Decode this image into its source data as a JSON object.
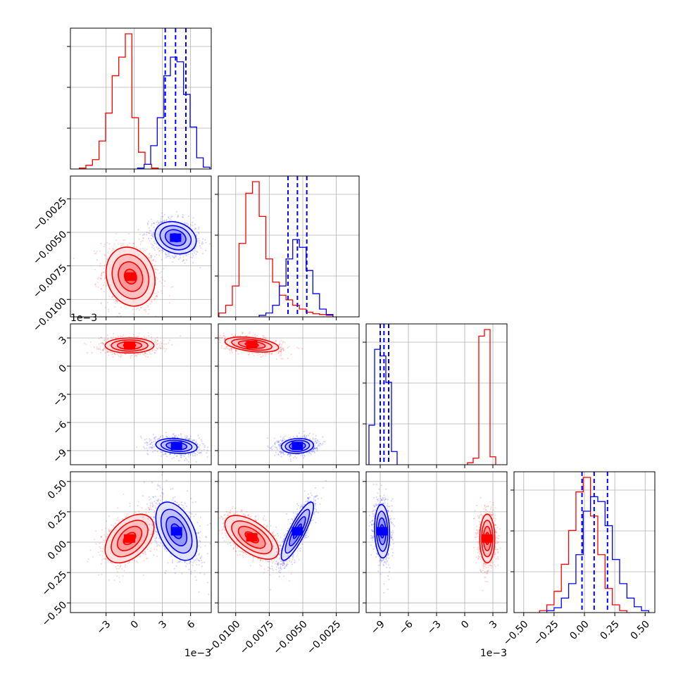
{
  "chart_data": {
    "type": "corner",
    "grid": true,
    "legend": "none",
    "series": [
      {
        "name": "",
        "color": "#ff0000",
        "quantiles_drawn": false
      },
      {
        "name": "",
        "color": "#0000ff",
        "quantiles_drawn": true
      }
    ],
    "parameters": [
      {
        "id": "p1",
        "range": [
          -0.0068,
          0.0082
        ],
        "ticks": [
          -0.003,
          0,
          0.003,
          0.006
        ],
        "tick_labels": [
          "−3",
          "0",
          "3",
          "6"
        ],
        "offset_label": "1e−3",
        "red": {
          "bin_centers": [
            -0.0055,
            -0.0048,
            -0.0041,
            -0.0034,
            -0.0027,
            -0.002,
            -0.0013,
            -0.0006,
            0.0001,
            0.0008,
            0.0015,
            0.0022
          ],
          "counts": [
            0.01,
            0.04,
            0.1,
            0.3,
            0.6,
            1.0,
            1.2,
            1.45,
            0.55,
            0.18,
            0.05,
            0.01
          ]
        },
        "blue": {
          "bin_centers": [
            0.0007,
            0.0014,
            0.0021,
            0.0028,
            0.0035,
            0.0042,
            0.0049,
            0.0056,
            0.0063,
            0.007,
            0.0077
          ],
          "counts": [
            0.01,
            0.05,
            0.25,
            0.55,
            1.0,
            1.2,
            1.15,
            0.8,
            0.45,
            0.12,
            0.02
          ]
        },
        "blue_quantiles": [
          0.0033,
          0.0044,
          0.0055
        ]
      },
      {
        "id": "p2",
        "range": [
          -0.0113,
          -0.0008
        ],
        "ticks": [
          -0.01,
          -0.0075,
          -0.005,
          -0.0025
        ],
        "tick_labels": [
          "−0.0100",
          "−0.0075",
          "−0.0050",
          "−0.0025"
        ],
        "offset_label": "",
        "red": {
          "bin_centers": [
            -0.011,
            -0.0105,
            -0.01,
            -0.0095,
            -0.009,
            -0.0085,
            -0.008,
            -0.0075,
            -0.007,
            -0.0065,
            -0.006,
            -0.0055,
            -0.005,
            -0.0045,
            -0.004,
            -0.0035,
            -0.003
          ],
          "counts": [
            0.05,
            0.15,
            0.4,
            0.95,
            1.6,
            1.75,
            1.3,
            0.75,
            0.45,
            0.28,
            0.22,
            0.15,
            0.1,
            0.06,
            0.04,
            0.03,
            0.02
          ]
        },
        "blue": {
          "bin_centers": [
            -0.008,
            -0.0075,
            -0.007,
            -0.0065,
            -0.006,
            -0.0055,
            -0.005,
            -0.0045,
            -0.004,
            -0.0035,
            -0.003
          ],
          "counts": [
            0.02,
            0.05,
            0.15,
            0.4,
            0.75,
            1.0,
            0.9,
            0.6,
            0.3,
            0.1,
            0.03
          ]
        },
        "blue_quantiles": [
          -0.0061,
          -0.0054,
          -0.0047
        ]
      },
      {
        "id": "p3",
        "range": [
          -0.0105,
          0.0045
        ],
        "ticks": [
          -0.009,
          -0.006,
          -0.003,
          0,
          0.003
        ],
        "tick_labels": [
          "−9",
          "−6",
          "−3",
          "0",
          "3"
        ],
        "offset_label": "1e−3",
        "red": {
          "bin_centers": [
            0.0006,
            0.0012,
            0.0018,
            0.0024,
            0.003
          ],
          "counts": [
            0.03,
            0.1,
            1.95,
            2.05,
            0.12
          ]
        },
        "blue": {
          "bin_centers": [
            -0.0099,
            -0.0093,
            -0.0087,
            -0.0081,
            -0.0075
          ],
          "counts": [
            0.6,
            1.75,
            1.65,
            1.25,
            0.2
          ]
        },
        "blue_quantiles": [
          -0.009,
          -0.0086,
          -0.0081
        ]
      },
      {
        "id": "p4",
        "range": [
          -0.58,
          0.58
        ],
        "ticks": [
          -0.5,
          -0.25,
          0,
          0.25,
          0.5
        ],
        "tick_labels": [
          "−0.50",
          "−0.25",
          "0.00",
          "0.25",
          "0.50"
        ],
        "offset_label": "",
        "red": {
          "bin_centers": [
            -0.34,
            -0.28,
            -0.22,
            -0.16,
            -0.1,
            -0.04,
            0.02,
            0.08,
            0.14,
            0.2,
            0.26,
            0.32
          ],
          "counts": [
            0.02,
            0.08,
            0.22,
            0.5,
            0.85,
            1.25,
            1.4,
            1.0,
            0.6,
            0.25,
            0.08,
            0.02
          ]
        },
        "blue": {
          "bin_centers": [
            -0.28,
            -0.22,
            -0.16,
            -0.1,
            -0.04,
            0.02,
            0.08,
            0.14,
            0.2,
            0.26,
            0.32,
            0.38,
            0.44,
            0.5
          ],
          "counts": [
            0.02,
            0.05,
            0.15,
            0.3,
            0.6,
            1.05,
            1.2,
            1.15,
            0.9,
            0.55,
            0.3,
            0.15,
            0.06,
            0.02
          ]
        },
        "blue_quantiles": [
          -0.02,
          0.08,
          0.19
        ]
      }
    ],
    "pairs": [
      {
        "x": 0,
        "y": 1,
        "red": {
          "mean": [
            -0.0004,
            -0.0083
          ],
          "std": [
            0.0013,
            0.0011
          ],
          "corr": -0.15
        },
        "blue": {
          "mean": [
            0.0044,
            -0.0054
          ],
          "std": [
            0.0011,
            0.0006
          ],
          "corr": -0.2
        }
      },
      {
        "x": 0,
        "y": 2,
        "red": {
          "mean": [
            -0.0005,
            0.0022
          ],
          "std": [
            0.0013,
            0.0004
          ],
          "corr": 0.0
        },
        "blue": {
          "mean": [
            0.0045,
            -0.0085
          ],
          "std": [
            0.0011,
            0.0004
          ],
          "corr": -0.2
        }
      },
      {
        "x": 1,
        "y": 2,
        "red": {
          "mean": [
            -0.0088,
            0.0023
          ],
          "std": [
            0.001,
            0.0004
          ],
          "corr": -0.4
        },
        "blue": {
          "mean": [
            -0.0054,
            -0.0085
          ],
          "std": [
            0.0006,
            0.0004
          ],
          "corr": 0.1
        }
      },
      {
        "x": 0,
        "y": 3,
        "red": {
          "mean": [
            -0.0005,
            0.03
          ],
          "std": [
            0.0013,
            0.1
          ],
          "corr": 0.45
        },
        "blue": {
          "mean": [
            0.0045,
            0.09
          ],
          "std": [
            0.0011,
            0.12
          ],
          "corr": -0.45
        }
      },
      {
        "x": 1,
        "y": 3,
        "red": {
          "mean": [
            -0.0088,
            0.04
          ],
          "std": [
            0.001,
            0.09
          ],
          "corr": -0.6
        },
        "blue": {
          "mean": [
            -0.0054,
            0.09
          ],
          "std": [
            0.0006,
            0.12
          ],
          "corr": 0.85
        }
      },
      {
        "x": 2,
        "y": 3,
        "red": {
          "mean": [
            0.0024,
            0.03
          ],
          "std": [
            0.0004,
            0.1
          ],
          "corr": 0.0
        },
        "blue": {
          "mean": [
            -0.0088,
            0.09
          ],
          "std": [
            0.0004,
            0.11
          ],
          "corr": -0.1
        }
      }
    ],
    "contour_levels_sigma": [
      0.5,
      1.0,
      1.5,
      2.0
    ]
  }
}
